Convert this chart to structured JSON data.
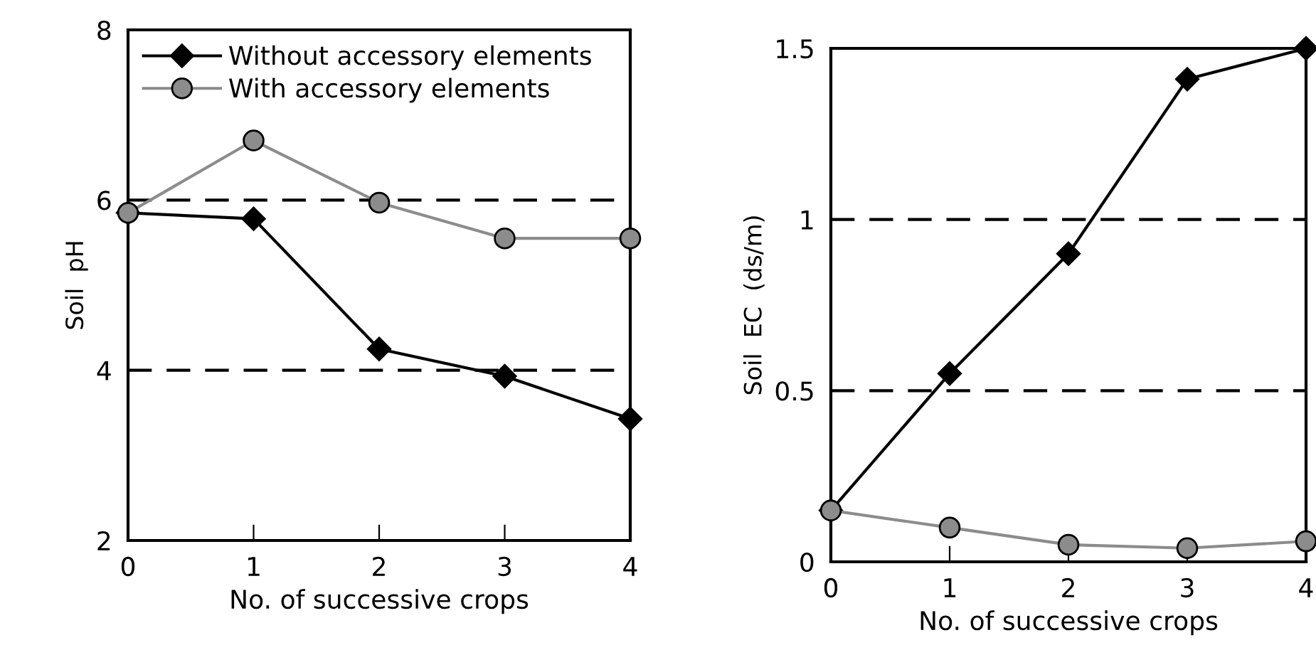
{
  "chart_data": [
    {
      "type": "line",
      "xlabel": "No. of successive crops",
      "ylabel": "Soil  pH",
      "x": [
        0,
        1,
        2,
        3,
        4
      ],
      "xlim": [
        0,
        4
      ],
      "xticks": [
        0,
        1,
        2,
        3,
        4
      ],
      "ylim": [
        2,
        8
      ],
      "yticks": [
        2,
        4,
        6,
        8
      ],
      "grid": false,
      "legend": "top left",
      "series": [
        {
          "name": "Without accessory elements",
          "color": "#000000",
          "marker": "diamond",
          "values": [
            5.85,
            5.78,
            4.25,
            3.93,
            3.43
          ]
        },
        {
          "name": "With accessory elements",
          "color": "#8c8c8c",
          "marker": "circle",
          "values": [
            5.85,
            6.7,
            5.97,
            5.55,
            5.55
          ]
        }
      ],
      "ref_lines": [
        {
          "axis": "y",
          "value": 6,
          "color": "#000000",
          "line_style": "dashed"
        },
        {
          "axis": "y",
          "value": 4,
          "color": "#000000",
          "line_style": "dashed"
        }
      ]
    },
    {
      "type": "line",
      "xlabel": "No. of successive crops",
      "ylabel": "Soil  EC  (ds/m)",
      "x": [
        0,
        1,
        2,
        3,
        4
      ],
      "xlim": [
        0,
        4
      ],
      "xticks": [
        0,
        1,
        2,
        3,
        4
      ],
      "ylim": [
        0,
        1.5
      ],
      "yticks": [
        0,
        0.5,
        1,
        1.5
      ],
      "grid": false,
      "series": [
        {
          "color": "#000000",
          "marker": "diamond",
          "values": [
            0.15,
            0.55,
            0.9,
            1.41,
            1.5
          ]
        },
        {
          "color": "#8c8c8c",
          "marker": "circle",
          "values": [
            0.15,
            0.1,
            0.05,
            0.04,
            0.06
          ]
        }
      ],
      "ref_lines": [
        {
          "axis": "y",
          "value": 1,
          "color": "#000000",
          "line_style": "dashed"
        },
        {
          "axis": "y",
          "value": 0.5,
          "color": "#000000",
          "line_style": "dashed"
        }
      ]
    }
  ]
}
